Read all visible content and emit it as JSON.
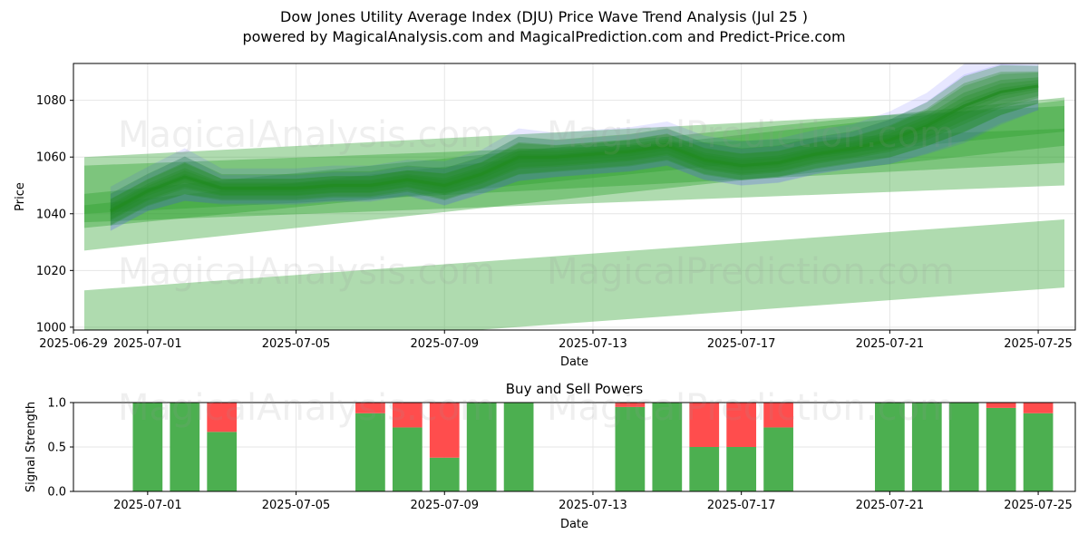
{
  "header": {
    "title": "Dow Jones Utility Average Index (DJU) Price Wave Trend Analysis (Jul 25 )",
    "subtitle": "powered by MagicalAnalysis.com and MagicalPrediction.com and Predict-Price.com"
  },
  "watermarks": [
    "MagicalAnalysis.com",
    "MagicalPrediction.com"
  ],
  "colors": {
    "band": "#2ca02c",
    "wave": "#228B22",
    "blue": "#4444ff",
    "buy": "#4caf50",
    "sell": "#ff4d4d",
    "grid": "#e6e6e6"
  },
  "chart_data": [
    {
      "type": "area",
      "title": "",
      "xlabel": "Date",
      "ylabel": "Price",
      "x_ticks": [
        "2025-06-29",
        "2025-07-01",
        "2025-07-05",
        "2025-07-09",
        "2025-07-13",
        "2025-07-17",
        "2025-07-21",
        "2025-07-25"
      ],
      "y_ticks": [
        1000,
        1020,
        1040,
        1060,
        1080
      ],
      "xlim": [
        "2025-06-29",
        "2025-07-26"
      ],
      "ylim": [
        999,
        1093
      ],
      "grid": true,
      "wave": {
        "dates": [
          "2025-06-30",
          "2025-07-01",
          "2025-07-02",
          "2025-07-03",
          "2025-07-04",
          "2025-07-05",
          "2025-07-06",
          "2025-07-07",
          "2025-07-08",
          "2025-07-09",
          "2025-07-10",
          "2025-07-11",
          "2025-07-12",
          "2025-07-13",
          "2025-07-14",
          "2025-07-15",
          "2025-07-16",
          "2025-07-17",
          "2025-07-18",
          "2025-07-19",
          "2025-07-20",
          "2025-07-21",
          "2025-07-22",
          "2025-07-23",
          "2025-07-24",
          "2025-07-25"
        ],
        "values": [
          1041,
          1048,
          1053,
          1049,
          1049,
          1049,
          1050,
          1050,
          1052,
          1050,
          1054,
          1060,
          1060,
          1061,
          1062,
          1064,
          1059,
          1057,
          1058,
          1061,
          1063,
          1066,
          1071,
          1078,
          1083,
          1085
        ],
        "spread": [
          5,
          5,
          6,
          4,
          4,
          4,
          4,
          4,
          4,
          5,
          5,
          6,
          5,
          5,
          5,
          5,
          5,
          5,
          5,
          5,
          5,
          6,
          7,
          9,
          8,
          6
        ]
      },
      "bands": [
        {
          "start": [
            "2025-06-29",
            1047
          ],
          "end": [
            "2025-07-26",
            1060
          ],
          "half_width": 10
        },
        {
          "start": [
            "2025-06-29",
            1050
          ],
          "end": [
            "2025-07-26",
            1068
          ],
          "half_width": 10
        },
        {
          "start": [
            "2025-06-29",
            1041
          ],
          "end": [
            "2025-07-26",
            1075
          ],
          "half_width": 6
        },
        {
          "start": [
            "2025-06-29",
            1035
          ],
          "end": [
            "2025-07-26",
            1072
          ],
          "half_width": 8
        },
        {
          "start": [
            "2025-06-29",
            1001
          ],
          "end": [
            "2025-07-26",
            1026
          ],
          "half_width": 12
        }
      ]
    },
    {
      "type": "bar",
      "title": "Buy and Sell Powers",
      "xlabel": "Date",
      "ylabel": "Signal Strength",
      "x_ticks": [
        "2025-07-01",
        "2025-07-05",
        "2025-07-09",
        "2025-07-13",
        "2025-07-17",
        "2025-07-21",
        "2025-07-25"
      ],
      "y_ticks": [
        0.0,
        0.5,
        1.0
      ],
      "ylim": [
        0,
        1
      ],
      "xlim": [
        "2025-06-29",
        "2025-07-26"
      ],
      "grid": true,
      "series": [
        {
          "name": "buy",
          "dates": [
            "2025-07-01",
            "2025-07-02",
            "2025-07-03",
            "2025-07-07",
            "2025-07-08",
            "2025-07-09",
            "2025-07-10",
            "2025-07-11",
            "2025-07-14",
            "2025-07-15",
            "2025-07-16",
            "2025-07-17",
            "2025-07-18",
            "2025-07-21",
            "2025-07-22",
            "2025-07-23",
            "2025-07-24",
            "2025-07-25"
          ],
          "values": [
            1.0,
            1.0,
            0.67,
            0.88,
            0.72,
            0.38,
            1.0,
            1.0,
            0.95,
            1.0,
            0.5,
            0.5,
            0.72,
            1.0,
            1.0,
            1.0,
            0.94,
            0.88
          ]
        },
        {
          "name": "sell",
          "dates": [
            "2025-07-01",
            "2025-07-02",
            "2025-07-03",
            "2025-07-07",
            "2025-07-08",
            "2025-07-09",
            "2025-07-10",
            "2025-07-11",
            "2025-07-14",
            "2025-07-15",
            "2025-07-16",
            "2025-07-17",
            "2025-07-18",
            "2025-07-21",
            "2025-07-22",
            "2025-07-23",
            "2025-07-24",
            "2025-07-25"
          ],
          "values": [
            0,
            0,
            0.33,
            0.12,
            0.28,
            0.62,
            0,
            0,
            0.05,
            0,
            0.5,
            0.5,
            0.28,
            0,
            0,
            0,
            0.06,
            0.12
          ]
        }
      ]
    }
  ]
}
